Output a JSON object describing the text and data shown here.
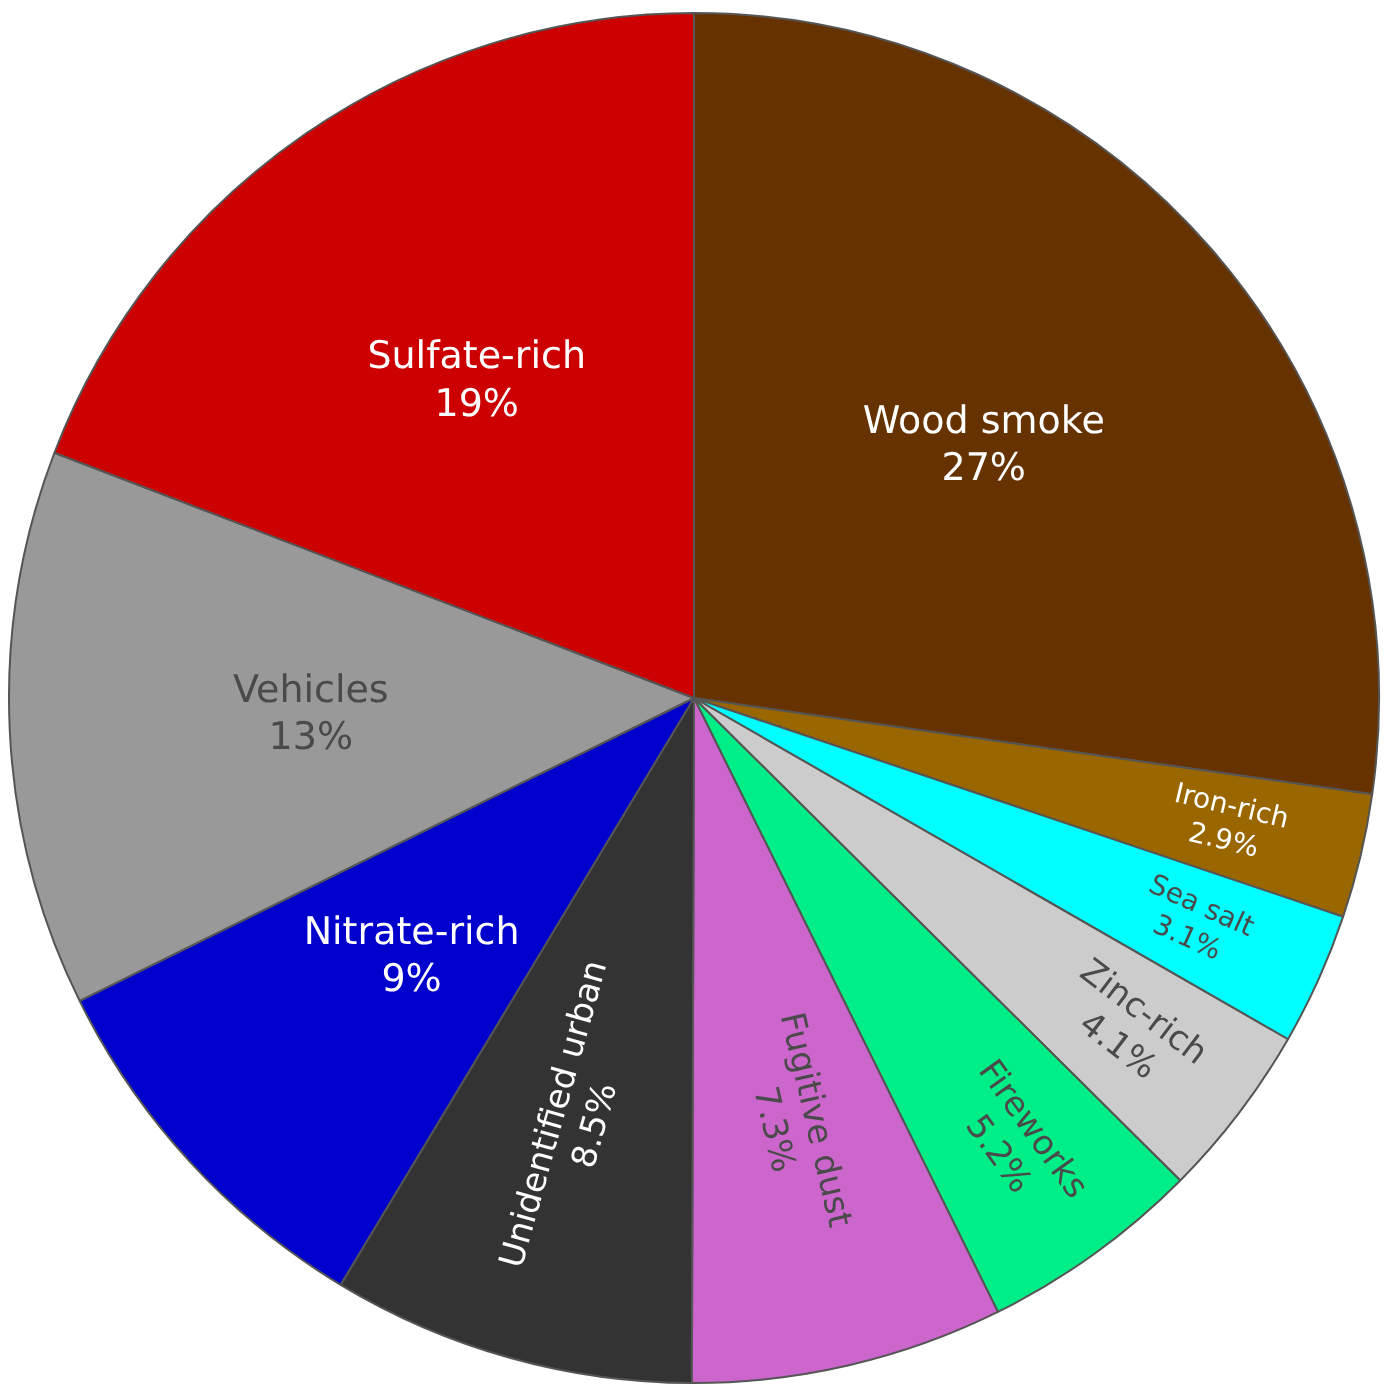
{
  "chart_data": {
    "type": "pie",
    "categories": [
      "Wood smoke",
      "Iron-rich",
      "Sea salt",
      "Zinc-rich",
      "Fireworks",
      "Fugitive dust",
      "Unidentified urban",
      "Nitrate-rich",
      "Vehicles",
      "Sulfate-rich"
    ],
    "values": [
      27,
      2.9,
      3.1,
      4.1,
      5.2,
      7.3,
      8.5,
      9,
      13,
      19
    ],
    "value_labels": [
      "27%",
      "2.9%",
      "3.1%",
      "4.1%",
      "5.2%",
      "7.3%",
      "8.5%",
      "9%",
      "13%",
      "19%"
    ],
    "colors": [
      "#663300",
      "#996600",
      "#00ffff",
      "#cccccc",
      "#00ee88",
      "#cc66cc",
      "#333333",
      "#0000cc",
      "#999999",
      "#cc0000"
    ],
    "legend": false
  }
}
